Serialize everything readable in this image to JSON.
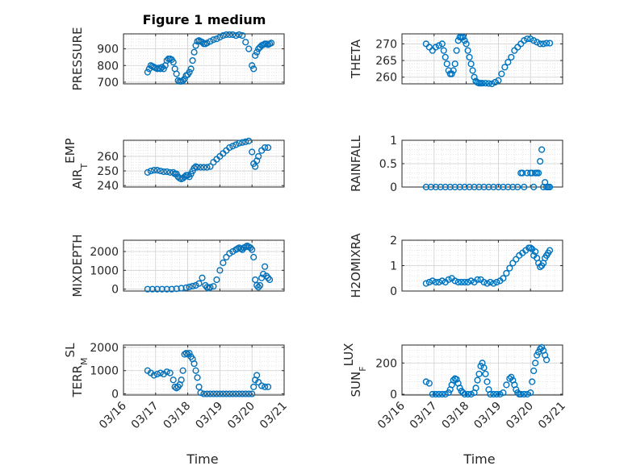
{
  "figure": {
    "title": "Figure 1 medium",
    "xlabel": "Time",
    "x_ticks": [
      "03/16",
      "03/17",
      "03/18",
      "03/19",
      "03/20",
      "03/21"
    ],
    "marker_color": "#0072BD"
  },
  "chart_data": [
    {
      "type": "scatter",
      "ylabel": "PRESSURE",
      "ylim": [
        690,
        990
      ],
      "y_ticks": [
        700,
        800,
        900
      ],
      "y_tick_labels": [
        "700",
        "800",
        "900"
      ],
      "grid": true,
      "series": [
        {
          "x": [
            16.75,
            16.8,
            16.85,
            16.9,
            16.95,
            17.0,
            17.05,
            17.1,
            17.15,
            17.2,
            17.25,
            17.3,
            17.35,
            17.4,
            17.45,
            17.5,
            17.55,
            17.6,
            17.65,
            17.7,
            17.75,
            17.8,
            17.85,
            17.9,
            17.95,
            18.0,
            18.05,
            18.1,
            18.15,
            18.2,
            18.25,
            18.3,
            18.35,
            18.4,
            18.45,
            18.5,
            18.55,
            18.6,
            18.7,
            18.8,
            18.9,
            19.0,
            19.1,
            19.2,
            19.3,
            19.4,
            19.5,
            19.6,
            19.7,
            19.8,
            19.9,
            20.0,
            20.05,
            20.1,
            20.15,
            20.2,
            20.25,
            20.3,
            20.35,
            20.4,
            20.45,
            20.5,
            20.55,
            20.6
          ],
          "y": [
            760,
            780,
            800,
            795,
            790,
            785,
            780,
            785,
            780,
            790,
            780,
            800,
            830,
            840,
            840,
            835,
            820,
            780,
            750,
            710,
            705,
            705,
            710,
            720,
            740,
            745,
            760,
            780,
            830,
            880,
            920,
            945,
            950,
            945,
            940,
            930,
            930,
            935,
            945,
            955,
            960,
            970,
            980,
            985,
            985,
            985,
            980,
            985,
            980,
            940,
            900,
            800,
            780,
            860,
            880,
            900,
            910,
            920,
            925,
            930,
            930,
            925,
            930,
            935
          ]
        }
      ]
    },
    {
      "type": "scatter",
      "ylabel": "THETA",
      "ylim": [
        258,
        273
      ],
      "y_ticks": [
        260,
        265,
        270
      ],
      "y_tick_labels": [
        "260",
        "265",
        "270"
      ],
      "grid": true,
      "series": [
        {
          "x": [
            16.75,
            16.85,
            16.95,
            17.05,
            17.15,
            17.25,
            17.3,
            17.35,
            17.4,
            17.45,
            17.5,
            17.55,
            17.6,
            17.65,
            17.7,
            17.75,
            17.8,
            17.85,
            17.9,
            17.95,
            18.0,
            18.05,
            18.1,
            18.15,
            18.2,
            18.25,
            18.3,
            18.35,
            18.4,
            18.45,
            18.5,
            18.6,
            18.7,
            18.8,
            18.9,
            19.0,
            19.1,
            19.2,
            19.3,
            19.4,
            19.5,
            19.6,
            19.7,
            19.8,
            19.9,
            20.0,
            20.1,
            20.2,
            20.3,
            20.4,
            20.5,
            20.6
          ],
          "y": [
            270,
            269,
            268,
            269,
            269.5,
            270,
            268,
            266,
            264,
            262,
            261,
            261,
            262,
            264,
            268,
            271,
            272,
            272,
            272,
            271,
            270,
            268,
            266,
            264,
            262,
            260,
            258.8,
            258.4,
            258.2,
            258.2,
            258.2,
            258.2,
            258.1,
            258,
            258.5,
            259,
            261,
            263,
            264.5,
            266,
            268,
            269,
            270,
            271,
            271.5,
            271.5,
            271,
            270.5,
            270,
            270,
            270.2,
            270.2
          ]
        }
      ]
    },
    {
      "type": "scatter",
      "ylabel": "AIR_TEMP",
      "ylim": [
        239,
        271
      ],
      "y_ticks": [
        240,
        250,
        260
      ],
      "y_tick_labels": [
        "240",
        "250",
        "260"
      ],
      "grid": true,
      "series": [
        {
          "x": [
            16.75,
            16.85,
            16.95,
            17.05,
            17.15,
            17.25,
            17.35,
            17.45,
            17.55,
            17.6,
            17.65,
            17.7,
            17.75,
            17.8,
            17.85,
            17.9,
            17.95,
            18.0,
            18.05,
            18.1,
            18.15,
            18.2,
            18.25,
            18.3,
            18.4,
            18.5,
            18.6,
            18.7,
            18.8,
            18.9,
            19.0,
            19.1,
            19.2,
            19.3,
            19.4,
            19.5,
            19.6,
            19.7,
            19.8,
            19.9,
            20.0,
            20.05,
            20.1,
            20.15,
            20.2,
            20.3,
            20.4,
            20.5
          ],
          "y": [
            249,
            250,
            250.5,
            250.5,
            250,
            249.5,
            249.5,
            249,
            249,
            248,
            248,
            246,
            245,
            244.5,
            245,
            246,
            247,
            247,
            246,
            248,
            250,
            252,
            253,
            252.5,
            252.5,
            252.5,
            252.5,
            253,
            256,
            258,
            260,
            262,
            264,
            266,
            267,
            268,
            269,
            269.5,
            270,
            270.5,
            263,
            255,
            253,
            257,
            260,
            264,
            266,
            266
          ]
        }
      ]
    },
    {
      "type": "scatter",
      "ylabel": "RAINFALL",
      "ylim": [
        0,
        1
      ],
      "y_ticks": [
        0,
        0.5,
        1
      ],
      "y_tick_labels": [
        "0",
        "0.5",
        "1"
      ],
      "grid": true,
      "series": [
        {
          "x": [
            16.75,
            16.9,
            17.05,
            17.2,
            17.35,
            17.5,
            17.65,
            17.8,
            17.95,
            18.1,
            18.25,
            18.4,
            18.55,
            18.7,
            18.85,
            19.0,
            19.15,
            19.3,
            19.45,
            19.6,
            19.7,
            19.75,
            19.8,
            19.9,
            20.0,
            20.05,
            20.1,
            20.15,
            20.2,
            20.25,
            20.3,
            20.35,
            20.4,
            20.45,
            20.5,
            20.55,
            20.6
          ],
          "y": [
            0,
            0,
            0,
            0,
            0,
            0,
            0,
            0,
            0,
            0,
            0,
            0,
            0,
            0,
            0,
            0,
            0,
            0,
            0,
            0,
            0.3,
            0.3,
            0,
            0.3,
            0.3,
            0.3,
            0,
            0.3,
            0.3,
            0.3,
            0.55,
            0.8,
            0,
            0.1,
            0,
            0,
            0
          ]
        }
      ]
    },
    {
      "type": "scatter",
      "ylabel": "MIXDEPTH",
      "ylim": [
        -100,
        2600
      ],
      "y_ticks": [
        0,
        1000,
        2000
      ],
      "y_tick_labels": [
        "0",
        "1000",
        "2000"
      ],
      "grid": true,
      "series": [
        {
          "x": [
            16.75,
            16.9,
            17.05,
            17.2,
            17.35,
            17.5,
            17.65,
            17.8,
            17.95,
            18.05,
            18.15,
            18.25,
            18.35,
            18.45,
            18.55,
            18.6,
            18.65,
            18.7,
            18.8,
            18.9,
            19.0,
            19.1,
            19.2,
            19.3,
            19.4,
            19.5,
            19.55,
            19.6,
            19.65,
            19.7,
            19.75,
            19.8,
            19.85,
            19.9,
            19.95,
            20.0,
            20.05,
            20.1,
            20.15,
            20.2,
            20.25,
            20.3,
            20.35,
            20.4,
            20.45,
            20.5,
            20.55
          ],
          "y": [
            0,
            0,
            0,
            0,
            0,
            0,
            20,
            50,
            80,
            120,
            160,
            200,
            300,
            600,
            200,
            100,
            50,
            100,
            150,
            500,
            1000,
            1400,
            1700,
            1900,
            2000,
            2100,
            2150,
            2200,
            2150,
            2100,
            2200,
            2250,
            2300,
            2250,
            2200,
            2100,
            1700,
            500,
            200,
            100,
            200,
            600,
            800,
            1200,
            700,
            600,
            500
          ]
        }
      ]
    },
    {
      "type": "scatter",
      "ylabel": "H2OMIXRA",
      "ylim": [
        0,
        2
      ],
      "y_ticks": [
        0,
        1,
        2
      ],
      "y_tick_labels": [
        "0",
        "1",
        "2"
      ],
      "grid": true,
      "series": [
        {
          "x": [
            16.75,
            16.85,
            16.95,
            17.05,
            17.15,
            17.25,
            17.35,
            17.45,
            17.55,
            17.65,
            17.75,
            17.85,
            17.95,
            18.05,
            18.15,
            18.25,
            18.35,
            18.45,
            18.55,
            18.65,
            18.75,
            18.85,
            18.95,
            19.05,
            19.15,
            19.25,
            19.35,
            19.45,
            19.55,
            19.65,
            19.75,
            19.85,
            19.95,
            20.0,
            20.05,
            20.1,
            20.15,
            20.2,
            20.25,
            20.3,
            20.35,
            20.4,
            20.45,
            20.5,
            20.55,
            20.6
          ],
          "y": [
            0.3,
            0.35,
            0.4,
            0.35,
            0.35,
            0.4,
            0.35,
            0.45,
            0.5,
            0.4,
            0.35,
            0.35,
            0.35,
            0.35,
            0.4,
            0.35,
            0.45,
            0.45,
            0.35,
            0.3,
            0.35,
            0.3,
            0.35,
            0.4,
            0.5,
            0.7,
            0.9,
            1.1,
            1.25,
            1.4,
            1.5,
            1.6,
            1.7,
            1.7,
            1.65,
            1.4,
            1.55,
            1.3,
            1.1,
            0.95,
            1.0,
            1.1,
            1.3,
            1.4,
            1.5,
            1.6
          ]
        }
      ]
    },
    {
      "type": "scatter",
      "ylabel": "TERR_MSL",
      "ylim": [
        -50,
        2100
      ],
      "y_ticks": [
        0,
        1000,
        2000
      ],
      "y_tick_labels": [
        "0",
        "1000",
        "2000"
      ],
      "grid": true,
      "series": [
        {
          "x": [
            16.75,
            16.85,
            16.95,
            17.05,
            17.15,
            17.25,
            17.35,
            17.45,
            17.55,
            17.6,
            17.65,
            17.7,
            17.75,
            17.8,
            17.85,
            17.9,
            17.95,
            18.0,
            18.05,
            18.1,
            18.15,
            18.2,
            18.25,
            18.3,
            18.35,
            18.4,
            18.5,
            18.6,
            18.7,
            18.8,
            18.9,
            19.0,
            19.1,
            19.2,
            19.3,
            19.4,
            19.5,
            19.6,
            19.7,
            19.8,
            19.9,
            20.0,
            20.05,
            20.1,
            20.15,
            20.2,
            20.3,
            20.4,
            20.5
          ],
          "y": [
            1000,
            900,
            800,
            850,
            900,
            850,
            950,
            900,
            600,
            300,
            250,
            300,
            400,
            600,
            1000,
            1700,
            1750,
            1700,
            1750,
            1600,
            1500,
            1300,
            1000,
            700,
            300,
            50,
            0,
            0,
            0,
            0,
            0,
            0,
            0,
            0,
            0,
            0,
            0,
            0,
            0,
            0,
            0,
            0,
            300,
            600,
            800,
            500,
            350,
            300,
            300
          ]
        }
      ]
    },
    {
      "type": "scatter",
      "ylabel": "SUN_FLUX",
      "ylim": [
        -5,
        315
      ],
      "y_ticks": [
        0,
        200
      ],
      "y_tick_labels": [
        "0",
        "200"
      ],
      "grid": true,
      "series": [
        {
          "x": [
            16.75,
            16.85,
            16.95,
            17.05,
            17.15,
            17.25,
            17.35,
            17.45,
            17.5,
            17.55,
            17.6,
            17.65,
            17.7,
            17.75,
            17.8,
            17.85,
            17.9,
            17.95,
            18.05,
            18.15,
            18.25,
            18.3,
            18.35,
            18.4,
            18.45,
            18.5,
            18.55,
            18.6,
            18.65,
            18.7,
            18.75,
            18.85,
            18.95,
            19.05,
            19.15,
            19.25,
            19.35,
            19.4,
            19.45,
            19.5,
            19.55,
            19.6,
            19.65,
            19.7,
            19.8,
            19.9,
            20.0,
            20.05,
            20.1,
            20.15,
            20.2,
            20.25,
            20.3,
            20.35,
            20.4,
            20.45,
            20.5
          ],
          "y": [
            80,
            70,
            0,
            0,
            0,
            0,
            0,
            10,
            30,
            60,
            90,
            100,
            95,
            70,
            40,
            20,
            10,
            0,
            0,
            0,
            10,
            40,
            90,
            130,
            180,
            200,
            170,
            130,
            80,
            30,
            0,
            0,
            0,
            0,
            10,
            60,
            100,
            110,
            90,
            60,
            30,
            10,
            0,
            0,
            0,
            0,
            10,
            80,
            150,
            200,
            250,
            270,
            290,
            300,
            280,
            250,
            220
          ]
        }
      ]
    }
  ]
}
